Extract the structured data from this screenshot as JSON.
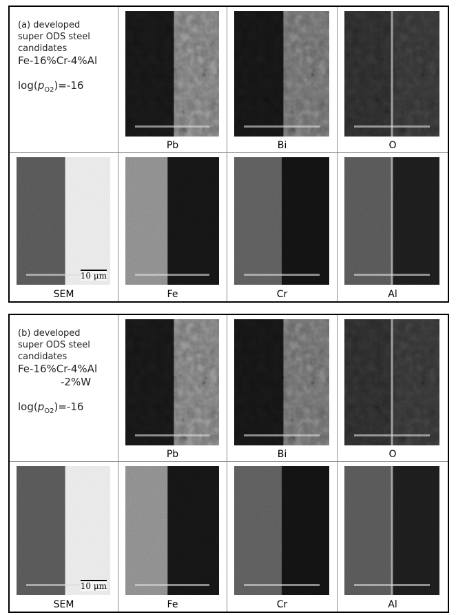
{
  "panels": [
    {
      "caption": [
        "(a) developed",
        "super ODS steel",
        "candidates"
      ],
      "alloy": [
        "Fe-16%Cr-4%Al"
      ],
      "condition": {
        "prefix": "log(",
        "p": "p",
        "sub": "O2",
        "suffix": ")=-16"
      },
      "top_labels": [
        "Pb",
        "Bi",
        "O"
      ],
      "bottom_labels": [
        "SEM",
        "Fe",
        "Cr",
        "Al"
      ],
      "scale_bar": "10 μm"
    },
    {
      "caption": [
        "(b) developed",
        "super ODS steel",
        "candidates"
      ],
      "alloy": [
        "Fe-16%Cr-4%Al",
        "-2%W"
      ],
      "condition": {
        "prefix": "log(",
        "p": "p",
        "sub": "O2",
        "suffix": ")=-16"
      },
      "top_labels": [
        "Pb",
        "Bi",
        "O"
      ],
      "bottom_labels": [
        "SEM",
        "Fe",
        "Cr",
        "Al"
      ],
      "scale_bar": "10 μm"
    }
  ]
}
